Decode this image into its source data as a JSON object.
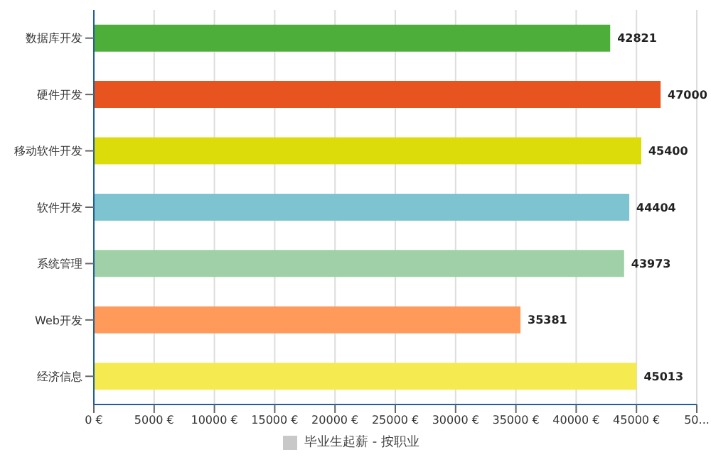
{
  "chart_data": {
    "type": "bar",
    "orientation": "horizontal",
    "categories": [
      "数据库开发",
      "硬件开发",
      "移动软件开发",
      "软件开发",
      "系统管理",
      "Web开发",
      "经济信息"
    ],
    "series": [
      {
        "name": "毕业生起薪 - 按职业",
        "color": "#c8c8c8",
        "values": [
          42821,
          47000,
          45400,
          44404,
          43973,
          35381,
          45013
        ],
        "colors": [
          "#4daf3a",
          "#e8541f",
          "#dcdc0a",
          "#7ec3d0",
          "#9fd0a8",
          "#ff9a5a",
          "#f5ea50"
        ]
      }
    ],
    "xlim": [
      0,
      50000
    ],
    "xticks": [
      {
        "value": 0,
        "label": "0 €"
      },
      {
        "value": 5000,
        "label": "5000 €"
      },
      {
        "value": 10000,
        "label": "10000 €"
      },
      {
        "value": 15000,
        "label": "15000 €"
      },
      {
        "value": 20000,
        "label": "20000 €"
      },
      {
        "value": 25000,
        "label": "25000 €"
      },
      {
        "value": 30000,
        "label": "30000 €"
      },
      {
        "value": 35000,
        "label": "35000 €"
      },
      {
        "value": 40000,
        "label": "40000 €"
      },
      {
        "value": 45000,
        "label": "45000 €"
      },
      {
        "value": 50000,
        "label": "50..."
      }
    ],
    "grid": "x",
    "legend": "bottom",
    "data_labels": true
  }
}
